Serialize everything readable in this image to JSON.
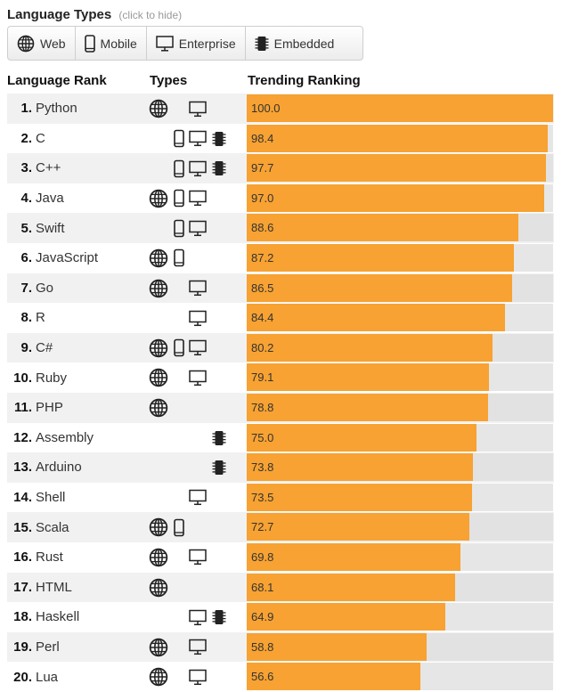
{
  "header": {
    "title": "Language Types",
    "hint": "(click to hide)"
  },
  "filters": [
    {
      "label": "Web",
      "icon": "globe-icon"
    },
    {
      "label": "Mobile",
      "icon": "mobile-icon"
    },
    {
      "label": "Enterprise",
      "icon": "monitor-icon"
    },
    {
      "label": "Embedded",
      "icon": "chip-icon"
    }
  ],
  "columns": {
    "rank": "Language Rank",
    "types": "Types",
    "trending": "Trending Ranking"
  },
  "colors": {
    "bar": "#f7a232",
    "track": "#e6e6e6"
  },
  "rows": [
    {
      "rank": "1.",
      "name": "Python",
      "score": "100.0",
      "value": 100.0,
      "types": [
        "web",
        "enterprise"
      ]
    },
    {
      "rank": "2.",
      "name": "C",
      "score": "98.4",
      "value": 98.4,
      "types": [
        "mobile",
        "enterprise",
        "embedded"
      ]
    },
    {
      "rank": "3.",
      "name": "C++",
      "score": "97.7",
      "value": 97.7,
      "types": [
        "mobile",
        "enterprise",
        "embedded"
      ]
    },
    {
      "rank": "4.",
      "name": "Java",
      "score": "97.0",
      "value": 97.0,
      "types": [
        "web",
        "mobile",
        "enterprise"
      ]
    },
    {
      "rank": "5.",
      "name": "Swift",
      "score": "88.6",
      "value": 88.6,
      "types": [
        "mobile",
        "enterprise"
      ]
    },
    {
      "rank": "6.",
      "name": "JavaScript",
      "score": "87.2",
      "value": 87.2,
      "types": [
        "web",
        "mobile"
      ]
    },
    {
      "rank": "7.",
      "name": "Go",
      "score": "86.5",
      "value": 86.5,
      "types": [
        "web",
        "enterprise"
      ]
    },
    {
      "rank": "8.",
      "name": "R",
      "score": "84.4",
      "value": 84.4,
      "types": [
        "enterprise"
      ]
    },
    {
      "rank": "9.",
      "name": "C#",
      "score": "80.2",
      "value": 80.2,
      "types": [
        "web",
        "mobile",
        "enterprise"
      ]
    },
    {
      "rank": "10.",
      "name": "Ruby",
      "score": "79.1",
      "value": 79.1,
      "types": [
        "web",
        "enterprise"
      ]
    },
    {
      "rank": "11.",
      "name": "PHP",
      "score": "78.8",
      "value": 78.8,
      "types": [
        "web"
      ]
    },
    {
      "rank": "12.",
      "name": "Assembly",
      "score": "75.0",
      "value": 75.0,
      "types": [
        "embedded"
      ]
    },
    {
      "rank": "13.",
      "name": "Arduino",
      "score": "73.8",
      "value": 73.8,
      "types": [
        "embedded"
      ]
    },
    {
      "rank": "14.",
      "name": "Shell",
      "score": "73.5",
      "value": 73.5,
      "types": [
        "enterprise"
      ]
    },
    {
      "rank": "15.",
      "name": "Scala",
      "score": "72.7",
      "value": 72.7,
      "types": [
        "web",
        "mobile"
      ]
    },
    {
      "rank": "16.",
      "name": "Rust",
      "score": "69.8",
      "value": 69.8,
      "types": [
        "web",
        "enterprise"
      ]
    },
    {
      "rank": "17.",
      "name": "HTML",
      "score": "68.1",
      "value": 68.1,
      "types": [
        "web"
      ]
    },
    {
      "rank": "18.",
      "name": "Haskell",
      "score": "64.9",
      "value": 64.9,
      "types": [
        "enterprise",
        "embedded"
      ]
    },
    {
      "rank": "19.",
      "name": "Perl",
      "score": "58.8",
      "value": 58.8,
      "types": [
        "web",
        "enterprise"
      ]
    },
    {
      "rank": "20.",
      "name": "Lua",
      "score": "56.6",
      "value": 56.6,
      "types": [
        "web",
        "enterprise"
      ]
    }
  ]
}
